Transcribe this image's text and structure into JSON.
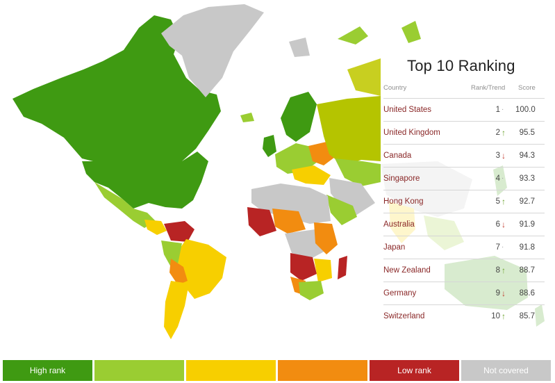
{
  "ranking": {
    "title": "Top 10 Ranking",
    "columns": {
      "country": "Country",
      "rank_trend": "Rank/Trend",
      "score": "Score"
    },
    "rows": [
      {
        "country": "United States",
        "rank": "1",
        "trend": "same",
        "trend_symbol": "·",
        "score": "100.0"
      },
      {
        "country": "United Kingdom",
        "rank": "2",
        "trend": "up",
        "trend_symbol": "↑",
        "score": "95.5"
      },
      {
        "country": "Canada",
        "rank": "3",
        "trend": "down",
        "trend_symbol": "↓",
        "score": "94.3"
      },
      {
        "country": "Singapore",
        "rank": "4",
        "trend": "same",
        "trend_symbol": "·",
        "score": "93.3"
      },
      {
        "country": "Hong Kong",
        "rank": "5",
        "trend": "up",
        "trend_symbol": "↑",
        "score": "92.7"
      },
      {
        "country": "Australia",
        "rank": "6",
        "trend": "down",
        "trend_symbol": "↓",
        "score": "91.9"
      },
      {
        "country": "Japan",
        "rank": "7",
        "trend": "same",
        "trend_symbol": "·",
        "score": "91.8"
      },
      {
        "country": "New Zealand",
        "rank": "8",
        "trend": "up",
        "trend_symbol": "↑",
        "score": "88.7"
      },
      {
        "country": "Germany",
        "rank": "9",
        "trend": "down",
        "trend_symbol": "↓",
        "score": "88.6"
      },
      {
        "country": "Switzerland",
        "rank": "10",
        "trend": "up",
        "trend_symbol": "↑",
        "score": "85.7"
      }
    ]
  },
  "legend": [
    {
      "label": "High rank",
      "color": "#3f9a12"
    },
    {
      "label": "",
      "color": "#9acd32"
    },
    {
      "label": "",
      "color": "#f7cf00"
    },
    {
      "label": "",
      "color": "#f28c10"
    },
    {
      "label": "Low rank",
      "color": "#b82424"
    },
    {
      "label": "Not covered",
      "color": "#c8c8c8"
    }
  ],
  "map_colors": {
    "high": "#3f9a12",
    "high_mid": "#9acd32",
    "mid": "#f7cf00",
    "low_mid": "#f28c10",
    "low": "#b82424",
    "not_covered": "#c8c8c8"
  }
}
